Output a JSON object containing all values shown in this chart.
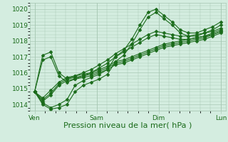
{
  "bg_color": "#d4ede0",
  "grid_color": "#a8c8b4",
  "line_color": "#1a6b1a",
  "marker_color": "#1a6b1a",
  "xlabel": "Pression niveau de la mer( hPa )",
  "xlabel_fontsize": 8,
  "yticks": [
    1014,
    1015,
    1016,
    1017,
    1018,
    1019,
    1020
  ],
  "ylim": [
    1013.6,
    1020.4
  ],
  "xtick_labels": [
    "Ven",
    "Sam",
    "Dim",
    "Lun"
  ],
  "xtick_positions": [
    0,
    1,
    2,
    3
  ],
  "xlim": [
    -0.08,
    3.08
  ],
  "series": [
    [
      1014.8,
      1014.1,
      1013.8,
      1014.0,
      1014.3,
      1015.2,
      1015.5,
      1015.7,
      1015.9,
      1016.2,
      1017.0,
      1017.4,
      1018.1,
      1019.0,
      1019.8,
      1020.0,
      1019.6,
      1019.2,
      1018.7,
      1018.5,
      1018.5,
      1018.7,
      1018.9,
      1019.2
    ],
    [
      1014.8,
      1014.0,
      1013.7,
      1013.8,
      1014.0,
      1014.8,
      1015.2,
      1015.4,
      1015.6,
      1015.9,
      1016.7,
      1017.1,
      1017.8,
      1018.7,
      1019.5,
      1019.8,
      1019.4,
      1019.0,
      1018.5,
      1018.3,
      1018.3,
      1018.5,
      1018.7,
      1019.0
    ],
    [
      1014.8,
      1014.2,
      1014.6,
      1015.2,
      1015.5,
      1015.6,
      1015.7,
      1015.8,
      1016.0,
      1016.2,
      1016.5,
      1016.6,
      1016.8,
      1017.0,
      1017.2,
      1017.4,
      1017.6,
      1017.7,
      1017.8,
      1017.9,
      1018.0,
      1018.1,
      1018.3,
      1018.5
    ],
    [
      1014.8,
      1014.3,
      1014.7,
      1015.3,
      1015.6,
      1015.7,
      1015.8,
      1015.9,
      1016.1,
      1016.3,
      1016.6,
      1016.7,
      1016.9,
      1017.1,
      1017.3,
      1017.5,
      1017.7,
      1017.8,
      1017.9,
      1018.0,
      1018.1,
      1018.2,
      1018.4,
      1018.6
    ],
    [
      1014.8,
      1014.4,
      1014.9,
      1015.4,
      1015.7,
      1015.8,
      1015.9,
      1016.0,
      1016.2,
      1016.4,
      1016.7,
      1016.8,
      1017.0,
      1017.2,
      1017.4,
      1017.6,
      1017.8,
      1017.9,
      1018.0,
      1018.1,
      1018.2,
      1018.3,
      1018.5,
      1018.7
    ],
    [
      1014.8,
      1017.1,
      1017.3,
      1016.0,
      1015.6,
      1015.8,
      1016.0,
      1016.2,
      1016.5,
      1016.8,
      1017.2,
      1017.5,
      1017.8,
      1018.1,
      1018.4,
      1018.6,
      1018.5,
      1018.4,
      1018.3,
      1018.3,
      1018.4,
      1018.5,
      1018.6,
      1018.8
    ],
    [
      1014.8,
      1016.8,
      1017.0,
      1015.8,
      1015.4,
      1015.6,
      1015.8,
      1016.0,
      1016.3,
      1016.6,
      1017.0,
      1017.3,
      1017.6,
      1017.9,
      1018.2,
      1018.4,
      1018.3,
      1018.2,
      1018.1,
      1018.1,
      1018.2,
      1018.3,
      1018.4,
      1018.6
    ]
  ],
  "marker_styles": [
    "D",
    "D",
    "D",
    "D",
    "D",
    "D",
    "D"
  ],
  "marker_sizes": [
    2.5,
    2.5,
    2.5,
    2.5,
    2.5,
    2.5,
    2.5
  ],
  "line_widths": [
    0.8,
    0.8,
    0.8,
    0.8,
    0.8,
    0.8,
    0.8
  ]
}
